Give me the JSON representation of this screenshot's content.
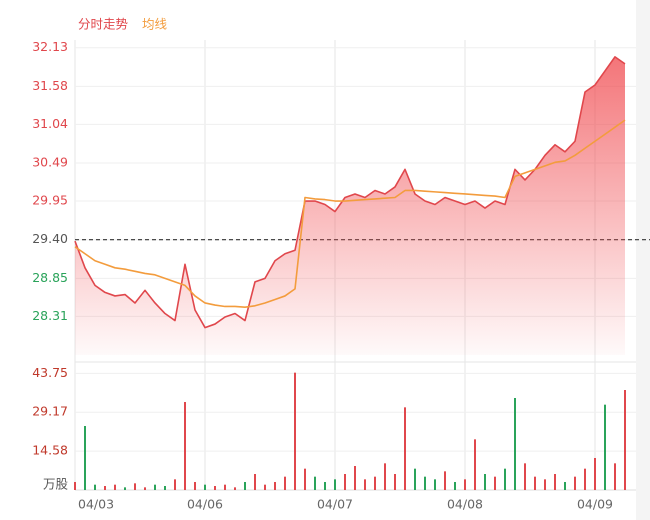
{
  "chart_data": {
    "type": "line",
    "series": [
      {
        "name": "分时走势",
        "color": "#e0474c",
        "values": [
          29.38,
          29.0,
          28.75,
          28.65,
          28.6,
          28.62,
          28.5,
          28.68,
          28.5,
          28.35,
          28.25,
          29.05,
          28.4,
          28.15,
          28.2,
          28.3,
          28.35,
          28.25,
          28.8,
          28.85,
          29.1,
          29.2,
          29.25,
          29.95,
          29.95,
          29.9,
          29.8,
          30.0,
          30.05,
          30.0,
          30.1,
          30.05,
          30.15,
          30.4,
          30.05,
          29.95,
          29.9,
          30.0,
          29.95,
          29.9,
          29.95,
          29.85,
          29.95,
          29.9,
          30.4,
          30.25,
          30.4,
          30.6,
          30.75,
          30.65,
          30.8,
          31.5,
          31.6,
          31.8,
          32.0,
          31.9
        ]
      },
      {
        "name": "均线",
        "color": "#f39c3d",
        "values": [
          29.3,
          29.2,
          29.1,
          29.05,
          29.0,
          28.98,
          28.95,
          28.92,
          28.9,
          28.85,
          28.8,
          28.75,
          28.6,
          28.5,
          28.47,
          28.45,
          28.45,
          28.44,
          28.46,
          28.5,
          28.55,
          28.6,
          28.7,
          30.0,
          29.98,
          29.97,
          29.95,
          29.95,
          29.96,
          29.97,
          29.98,
          29.99,
          30.0,
          30.1,
          30.1,
          30.09,
          30.08,
          30.07,
          30.06,
          30.05,
          30.04,
          30.03,
          30.02,
          30.0,
          30.3,
          30.35,
          30.4,
          30.45,
          30.5,
          30.52,
          30.6,
          30.7,
          30.8,
          30.9,
          31.0,
          31.1
        ]
      }
    ],
    "prev_close": 29.4,
    "up_color": "#e0474c",
    "down_color": "#2aa35a",
    "ylim": [
      27.76,
      32.24
    ],
    "yticks": [
      28.31,
      28.85,
      {
        "value": 29.4,
        "label": "29.40"
      },
      29.95,
      30.49,
      31.04,
      31.58,
      32.13
    ],
    "xlim": [
      0,
      55
    ],
    "xticks": [
      {
        "value": 0,
        "label": "04/03"
      },
      {
        "value": 13,
        "label": "04/06"
      },
      {
        "value": 26,
        "label": "04/07"
      },
      {
        "value": 39,
        "label": "04/08"
      },
      {
        "value": 52,
        "label": "04/09"
      }
    ],
    "volume": {
      "unit": "万股",
      "ylim": [
        0,
        45
      ],
      "yticks": [
        14.58,
        29.17,
        43.75
      ],
      "values": [
        3,
        24,
        2,
        1.5,
        2,
        1,
        2.5,
        1,
        2,
        1.5,
        4,
        33,
        3,
        2,
        1.5,
        2,
        1,
        3,
        6,
        2,
        3,
        5,
        44,
        8,
        5,
        3,
        4,
        6,
        9,
        4,
        5,
        10,
        6,
        31,
        8,
        5,
        4,
        7,
        3,
        4,
        19,
        6,
        5,
        8,
        34.5,
        10,
        5,
        4,
        6,
        3,
        5,
        8,
        12,
        32,
        10,
        37.5
      ],
      "colors": [
        "#e0474c",
        "#2aa35a",
        "#2aa35a",
        "#e0474c",
        "#e0474c",
        "#2aa35a",
        "#e0474c",
        "#e0474c",
        "#2aa35a",
        "#2aa35a",
        "#e0474c",
        "#e0474c",
        "#e0474c",
        "#2aa35a",
        "#e0474c",
        "#e0474c",
        "#e0474c",
        "#2aa35a",
        "#e0474c",
        "#e0474c",
        "#e0474c",
        "#e0474c",
        "#e0474c",
        "#e0474c",
        "#2aa35a",
        "#2aa35a",
        "#2aa35a",
        "#e0474c",
        "#e0474c",
        "#e0474c",
        "#e0474c",
        "#e0474c",
        "#e0474c",
        "#e0474c",
        "#2aa35a",
        "#2aa35a",
        "#2aa35a",
        "#e0474c",
        "#2aa35a",
        "#e0474c",
        "#e0474c",
        "#2aa35a",
        "#e0474c",
        "#2aa35a",
        "#2aa35a",
        "#e0474c",
        "#e0474c",
        "#e0474c",
        "#e0474c",
        "#2aa35a",
        "#e0474c",
        "#e0474c",
        "#e0474c",
        "#2aa35a",
        "#e0474c",
        "#e0474c"
      ]
    }
  }
}
